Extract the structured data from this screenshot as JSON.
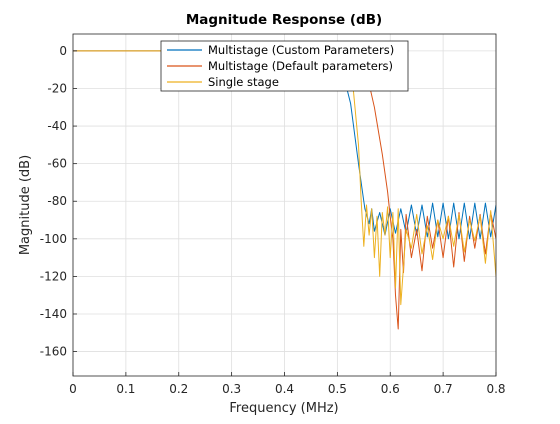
{
  "chart_data": {
    "type": "line",
    "title": "Magnitude Response (dB)",
    "xlabel": "Frequency (MHz)",
    "ylabel": "Magnitude (dB)",
    "xlim": [
      0,
      0.8
    ],
    "ylim": [
      -173,
      9
    ],
    "grid": true,
    "legend_position": "top-center",
    "x_ticks": [
      "0",
      "0.1",
      "0.2",
      "0.3",
      "0.4",
      "0.5",
      "0.6",
      "0.7",
      "0.8"
    ],
    "y_ticks": [
      "0",
      "-20",
      "-40",
      "-60",
      "-80",
      "-100",
      "-120",
      "-140",
      "-160"
    ],
    "series": [
      {
        "name": "Multistage (Custom Parameters)",
        "color": "#0072BD",
        "x": [
          0,
          0.5,
          0.525,
          0.54,
          0.55,
          0.552,
          0.56,
          0.565,
          0.57,
          0.58,
          0.59,
          0.6,
          0.61,
          0.62,
          0.63,
          0.64,
          0.65,
          0.66,
          0.67,
          0.68,
          0.69,
          0.7,
          0.71,
          0.72,
          0.73,
          0.74,
          0.75,
          0.76,
          0.77,
          0.78,
          0.79,
          0.8
        ],
        "y": [
          0,
          0,
          -28,
          -60,
          -80,
          -84,
          -92,
          -84,
          -96,
          -86,
          -98,
          -84,
          -97,
          -84,
          -97,
          -82,
          -98,
          -82,
          -99,
          -81,
          -99,
          -81,
          -100,
          -81,
          -100,
          -81,
          -100,
          -81,
          -100,
          -81,
          -99,
          -82
        ]
      },
      {
        "name": "Multistage (Default parameters)",
        "color": "#D95319",
        "x": [
          0,
          0.53,
          0.55,
          0.57,
          0.585,
          0.595,
          0.6,
          0.605,
          0.61,
          0.615,
          0.62,
          0.625,
          0.63,
          0.64,
          0.65,
          0.66,
          0.67,
          0.68,
          0.69,
          0.7,
          0.71,
          0.72,
          0.73,
          0.74,
          0.75,
          0.76,
          0.77,
          0.78,
          0.79,
          0.8
        ],
        "y": [
          0,
          0,
          -5,
          -30,
          -55,
          -75,
          -88,
          -100,
          -130,
          -148,
          -95,
          -118,
          -87,
          -110,
          -95,
          -117,
          -88,
          -105,
          -90,
          -110,
          -88,
          -115,
          -86,
          -112,
          -88,
          -105,
          -87,
          -108,
          -86,
          -100
        ]
      },
      {
        "name": "Single stage",
        "color": "#EDB120",
        "x": [
          0,
          0.52,
          0.53,
          0.54,
          0.545,
          0.55,
          0.555,
          0.56,
          0.565,
          0.57,
          0.575,
          0.58,
          0.585,
          0.59,
          0.595,
          0.6,
          0.605,
          0.61,
          0.615,
          0.62,
          0.63,
          0.64,
          0.65,
          0.66,
          0.67,
          0.68,
          0.69,
          0.7,
          0.71,
          0.72,
          0.73,
          0.74,
          0.75,
          0.76,
          0.77,
          0.78,
          0.79,
          0.8
        ],
        "y": [
          0,
          0,
          -20,
          -50,
          -80,
          -104,
          -82,
          -98,
          -84,
          -110,
          -88,
          -120,
          -86,
          -98,
          -83,
          -110,
          -86,
          -126,
          -84,
          -135,
          -95,
          -105,
          -87,
          -108,
          -93,
          -111,
          -90,
          -100,
          -88,
          -104,
          -87,
          -107,
          -90,
          -101,
          -88,
          -113,
          -85,
          -120
        ]
      }
    ]
  }
}
